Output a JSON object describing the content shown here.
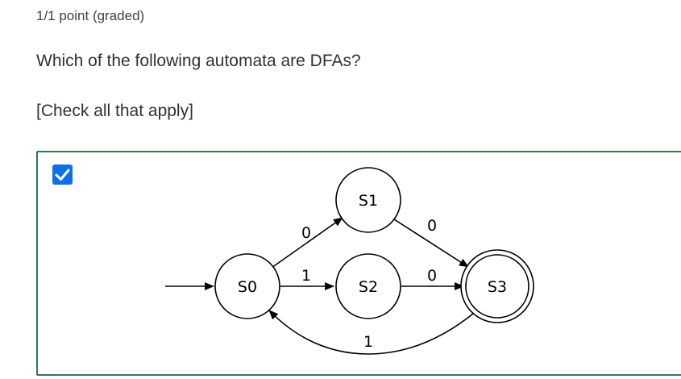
{
  "score_text": "1/1 point (graded)",
  "question_text": "Which of the following automata are DFAs?",
  "instruction_text": "[Check all that apply]",
  "choice": {
    "checked": true,
    "border_color": "#2c7a50",
    "checkbox_color": "#0f6fe6",
    "checkbox_icon": "checkmark-icon",
    "automaton": {
      "states": {
        "s0": "S0",
        "s1": "S1",
        "s2": "S2",
        "s3": "S3"
      },
      "start_state": "S0",
      "accepting_states": [
        "S3"
      ],
      "transitions": {
        "s0_s1": "0",
        "s0_s2": "1",
        "s1_s3": "0",
        "s2_s3": "0",
        "s3_s0": "1"
      }
    }
  }
}
